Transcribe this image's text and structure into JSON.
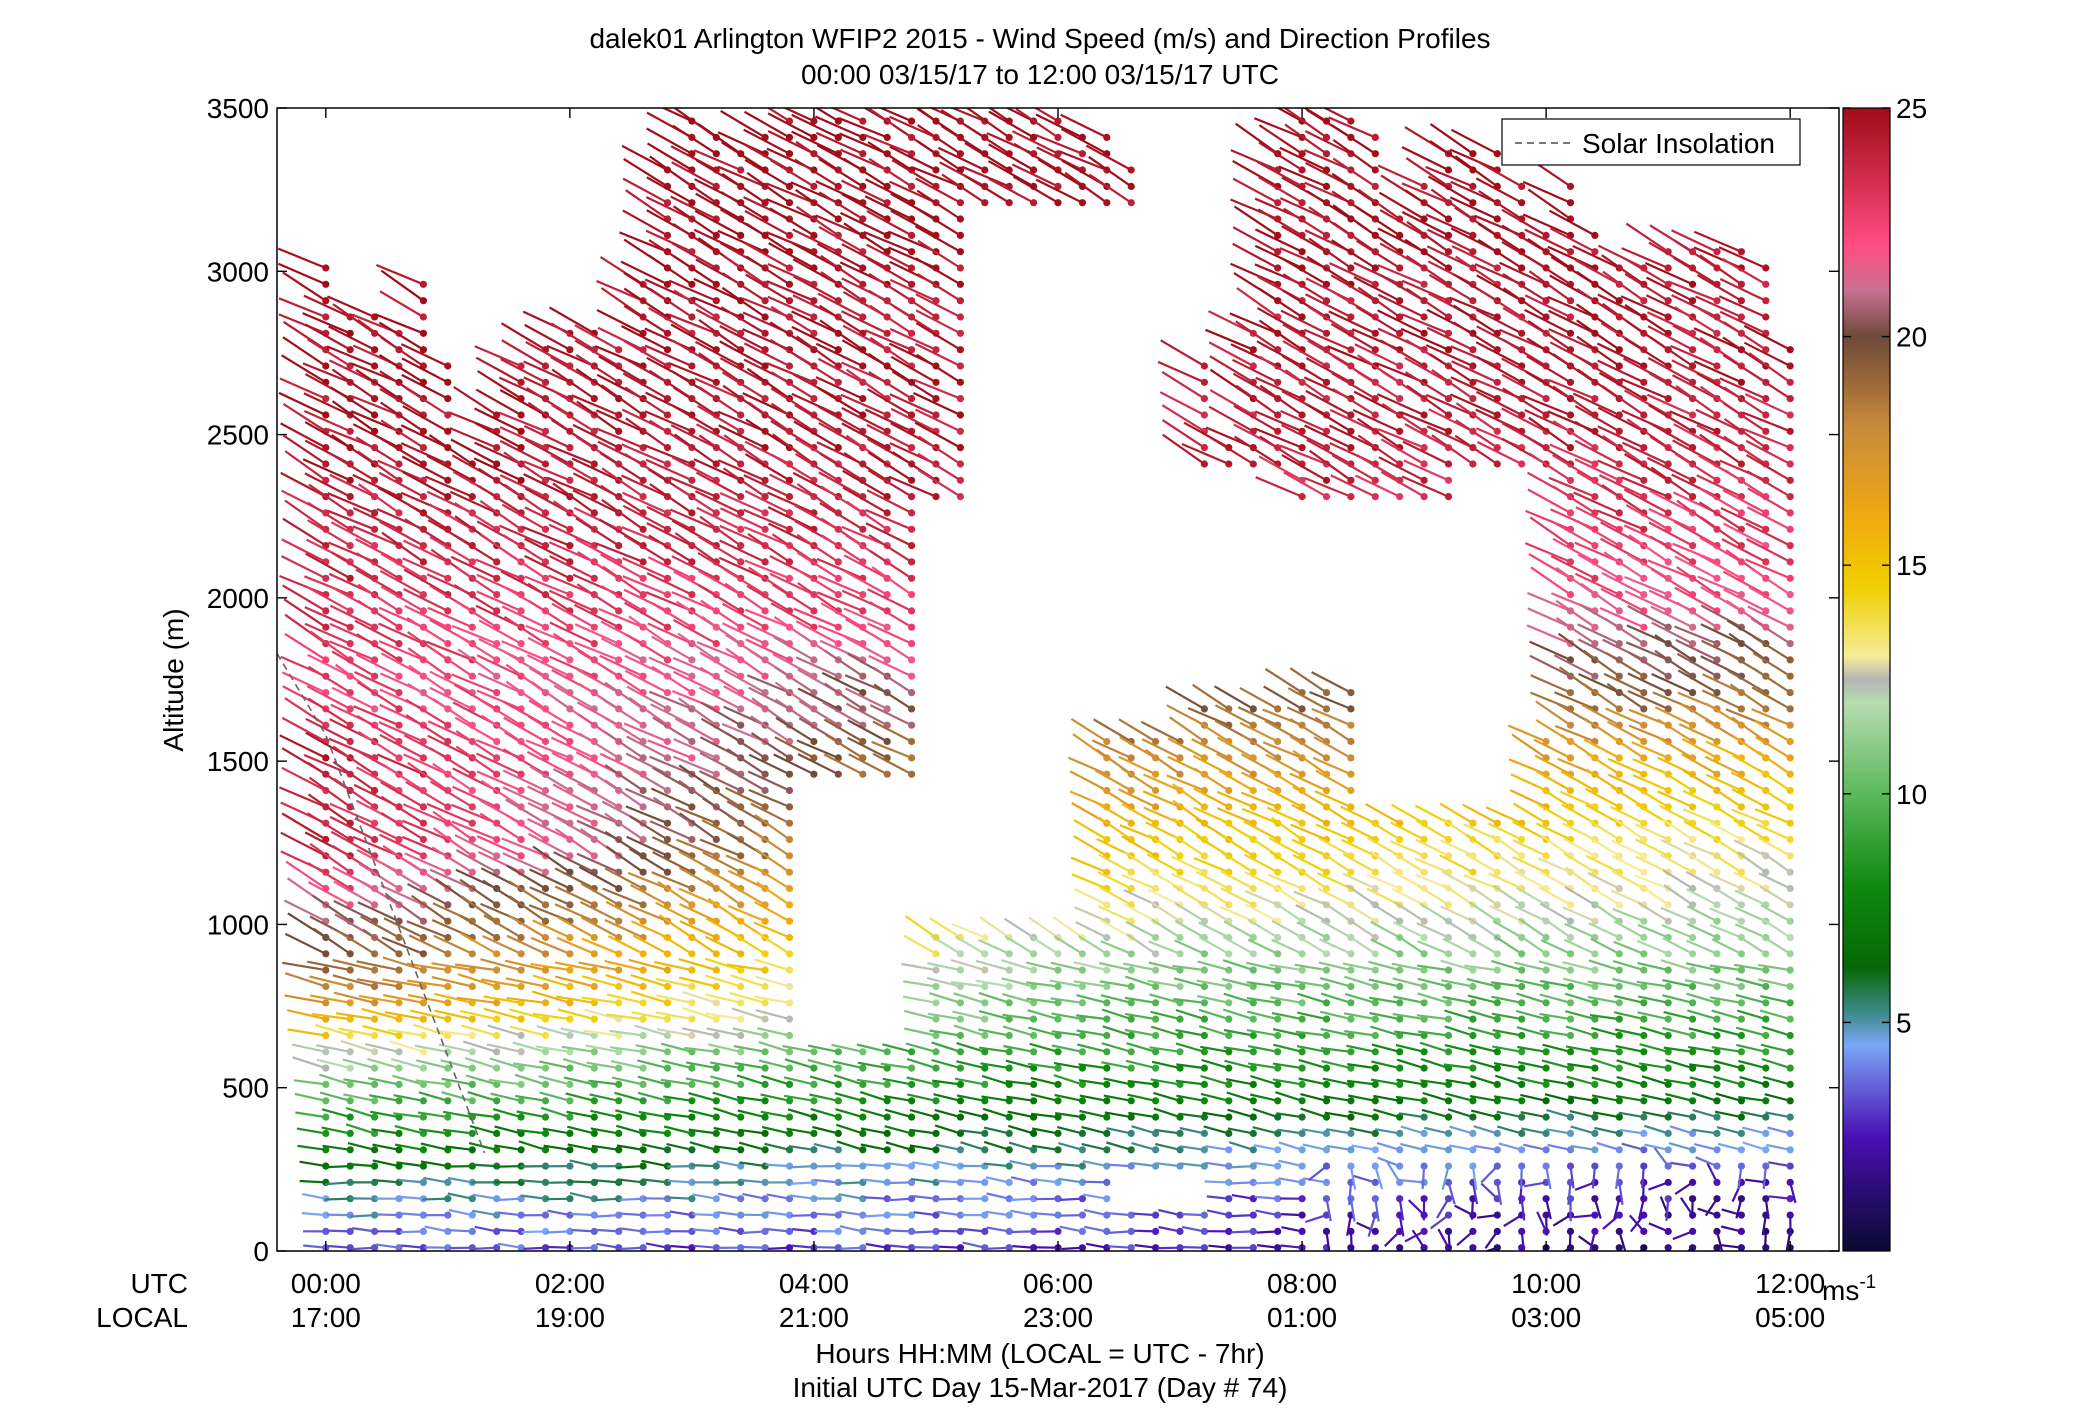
{
  "chart_data": {
    "type": "scatter",
    "title": "dalek01 Arlington WFIP2 2015 - Wind Speed (m/s) and Direction Profiles",
    "subtitle": "00:00 03/15/17 to 12:00 03/15/17  UTC",
    "ylabel": "Altitude (m)",
    "xlabel": "Hours HH:MM  (LOCAL = UTC - 7hr)",
    "xlabel2": "Initial UTC Day 15-Mar-2017 (Day # 74)",
    "ylim": [
      0,
      3500
    ],
    "xlim_hours": [
      -0.4,
      12.4
    ],
    "yticks": [
      0,
      500,
      1000,
      1500,
      2000,
      2500,
      3000,
      3500
    ],
    "xrow_labels": {
      "utc": "UTC",
      "local": "LOCAL"
    },
    "xticks": [
      {
        "hour": 0,
        "utc": "00:00",
        "local": "17:00"
      },
      {
        "hour": 2,
        "utc": "02:00",
        "local": "19:00"
      },
      {
        "hour": 4,
        "utc": "04:00",
        "local": "21:00"
      },
      {
        "hour": 6,
        "utc": "06:00",
        "local": "23:00"
      },
      {
        "hour": 8,
        "utc": "08:00",
        "local": "01:00"
      },
      {
        "hour": 10,
        "utc": "10:00",
        "local": "03:00"
      },
      {
        "hour": 12,
        "utc": "12:00",
        "local": "05:00"
      }
    ],
    "legend": {
      "label": "Solar Insolation",
      "position": "top-right",
      "line_color": "#666666"
    },
    "solar_insolation": {
      "x_hours": [
        -0.4,
        0.0,
        1.3
      ],
      "y_m": [
        1830,
        1580,
        300
      ]
    },
    "colorbar": {
      "min": 0,
      "max": 25,
      "ticks": [
        5,
        10,
        15,
        20,
        25
      ],
      "unit_label": "ms",
      "unit_exp": "-1",
      "stops": [
        {
          "v": 0,
          "c": "#0a0a30"
        },
        {
          "v": 2.5,
          "c": "#4a0fb4"
        },
        {
          "v": 4.5,
          "c": "#7aa6f5"
        },
        {
          "v": 5.2,
          "c": "#3f8a8c"
        },
        {
          "v": 6.2,
          "c": "#066806"
        },
        {
          "v": 8,
          "c": "#0f8a0f"
        },
        {
          "v": 10,
          "c": "#5cb85c"
        },
        {
          "v": 12,
          "c": "#b6dcb0"
        },
        {
          "v": 12.5,
          "c": "#b4b4b4"
        },
        {
          "v": 13,
          "c": "#f6ec9c"
        },
        {
          "v": 14.5,
          "c": "#f0d000"
        },
        {
          "v": 16,
          "c": "#f0aa10"
        },
        {
          "v": 18,
          "c": "#c98a3a"
        },
        {
          "v": 20,
          "c": "#6e4a3a"
        },
        {
          "v": 21,
          "c": "#c87090"
        },
        {
          "v": 22,
          "c": "#ff4c82"
        },
        {
          "v": 25,
          "c": "#a00c18"
        }
      ]
    },
    "profile_times_hours": [
      0.0,
      0.2,
      0.4,
      0.6,
      0.8,
      1.0,
      1.2,
      1.4,
      1.6,
      1.8,
      2.0,
      2.2,
      2.4,
      2.6,
      2.8,
      3.0,
      3.2,
      3.4,
      3.6,
      3.8,
      4.0,
      4.2,
      4.4,
      4.6,
      4.8,
      5.0,
      5.2,
      5.4,
      5.6,
      5.8,
      6.0,
      6.2,
      6.4,
      6.6,
      6.8,
      7.0,
      7.2,
      7.4,
      7.6,
      7.8,
      8.0,
      8.2,
      8.4,
      8.6,
      8.8,
      9.0,
      9.2,
      9.4,
      9.6,
      9.8,
      10.0,
      10.2,
      10.4,
      10.6,
      10.8,
      11.0,
      11.2,
      11.4,
      11.6,
      11.8,
      12.0
    ],
    "profile_top_m": [
      3030,
      2880,
      2870,
      2830,
      2970,
      2740,
      2450,
      2560,
      2740,
      2800,
      2830,
      2840,
      2760,
      2990,
      3330,
      3460,
      3440,
      3390,
      3420,
      3460,
      3460,
      3470,
      3480,
      3470,
      3470,
      3470,
      3470,
      3470,
      3460,
      3460,
      3460,
      3440,
      3420,
      3350,
      3150,
      2860,
      2740,
      2500,
      2850,
      3400,
      3460,
      3460,
      3460,
      3420,
      3200,
      3300,
      3390,
      3360,
      3380,
      3300,
      3150,
      3260,
      3150,
      3040,
      3040,
      3060,
      3100,
      3090,
      3080,
      3050,
      2800
    ],
    "gaps": [
      {
        "t": [
          4.0,
          4.9
        ],
        "y": [
          640,
          1450
        ]
      },
      {
        "t": [
          4.9,
          6.3
        ],
        "y": [
          1000,
          2300
        ]
      },
      {
        "t": [
          5.4,
          7.1
        ],
        "y": [
          1600,
          3200
        ]
      },
      {
        "t": [
          6.3,
          7.8
        ],
        "y": [
          1700,
          2400
        ]
      },
      {
        "t": [
          7.1,
          9.3
        ],
        "y": [
          1750,
          2300
        ]
      },
      {
        "t": [
          8.6,
          9.9
        ],
        "y": [
          1350,
          2200
        ]
      },
      {
        "t": [
          9.3,
          10.1
        ],
        "y": [
          1600,
          2400
        ]
      },
      {
        "t": [
          6.5,
          7.2
        ],
        "y": [
          150,
          250
        ]
      }
    ],
    "speed_profile_early": [
      [
        0,
        3.5
      ],
      [
        150,
        5
      ],
      [
        400,
        9
      ],
      [
        600,
        12.5
      ],
      [
        700,
        16
      ],
      [
        820,
        19
      ],
      [
        1000,
        21
      ],
      [
        1200,
        24
      ],
      [
        1500,
        24
      ],
      [
        1700,
        22.5
      ],
      [
        2000,
        23.5
      ],
      [
        2400,
        24.5
      ],
      [
        3500,
        25
      ]
    ],
    "speed_profile_mid": [
      [
        0,
        3
      ],
      [
        250,
        4.5
      ],
      [
        500,
        8
      ],
      [
        850,
        11
      ],
      [
        1100,
        14
      ],
      [
        1300,
        16
      ],
      [
        1600,
        19
      ],
      [
        1900,
        22
      ],
      [
        2300,
        24
      ],
      [
        3500,
        25
      ]
    ],
    "speed_profile_late": [
      [
        0,
        0.8
      ],
      [
        200,
        2.5
      ],
      [
        350,
        4.5
      ],
      [
        500,
        7.5
      ],
      [
        800,
        10
      ],
      [
        1100,
        12.5
      ],
      [
        1300,
        14
      ],
      [
        1500,
        16
      ],
      [
        1700,
        19
      ],
      [
        2000,
        22
      ],
      [
        2500,
        24
      ],
      [
        3500,
        25
      ]
    ],
    "direction_note": "Sticks point from the measurement dot toward the lower-left (southwesterly flow); near-surface sticks are nearly horizontal in the early hours and scattered late.",
    "vertical_spacing_m": 50
  }
}
